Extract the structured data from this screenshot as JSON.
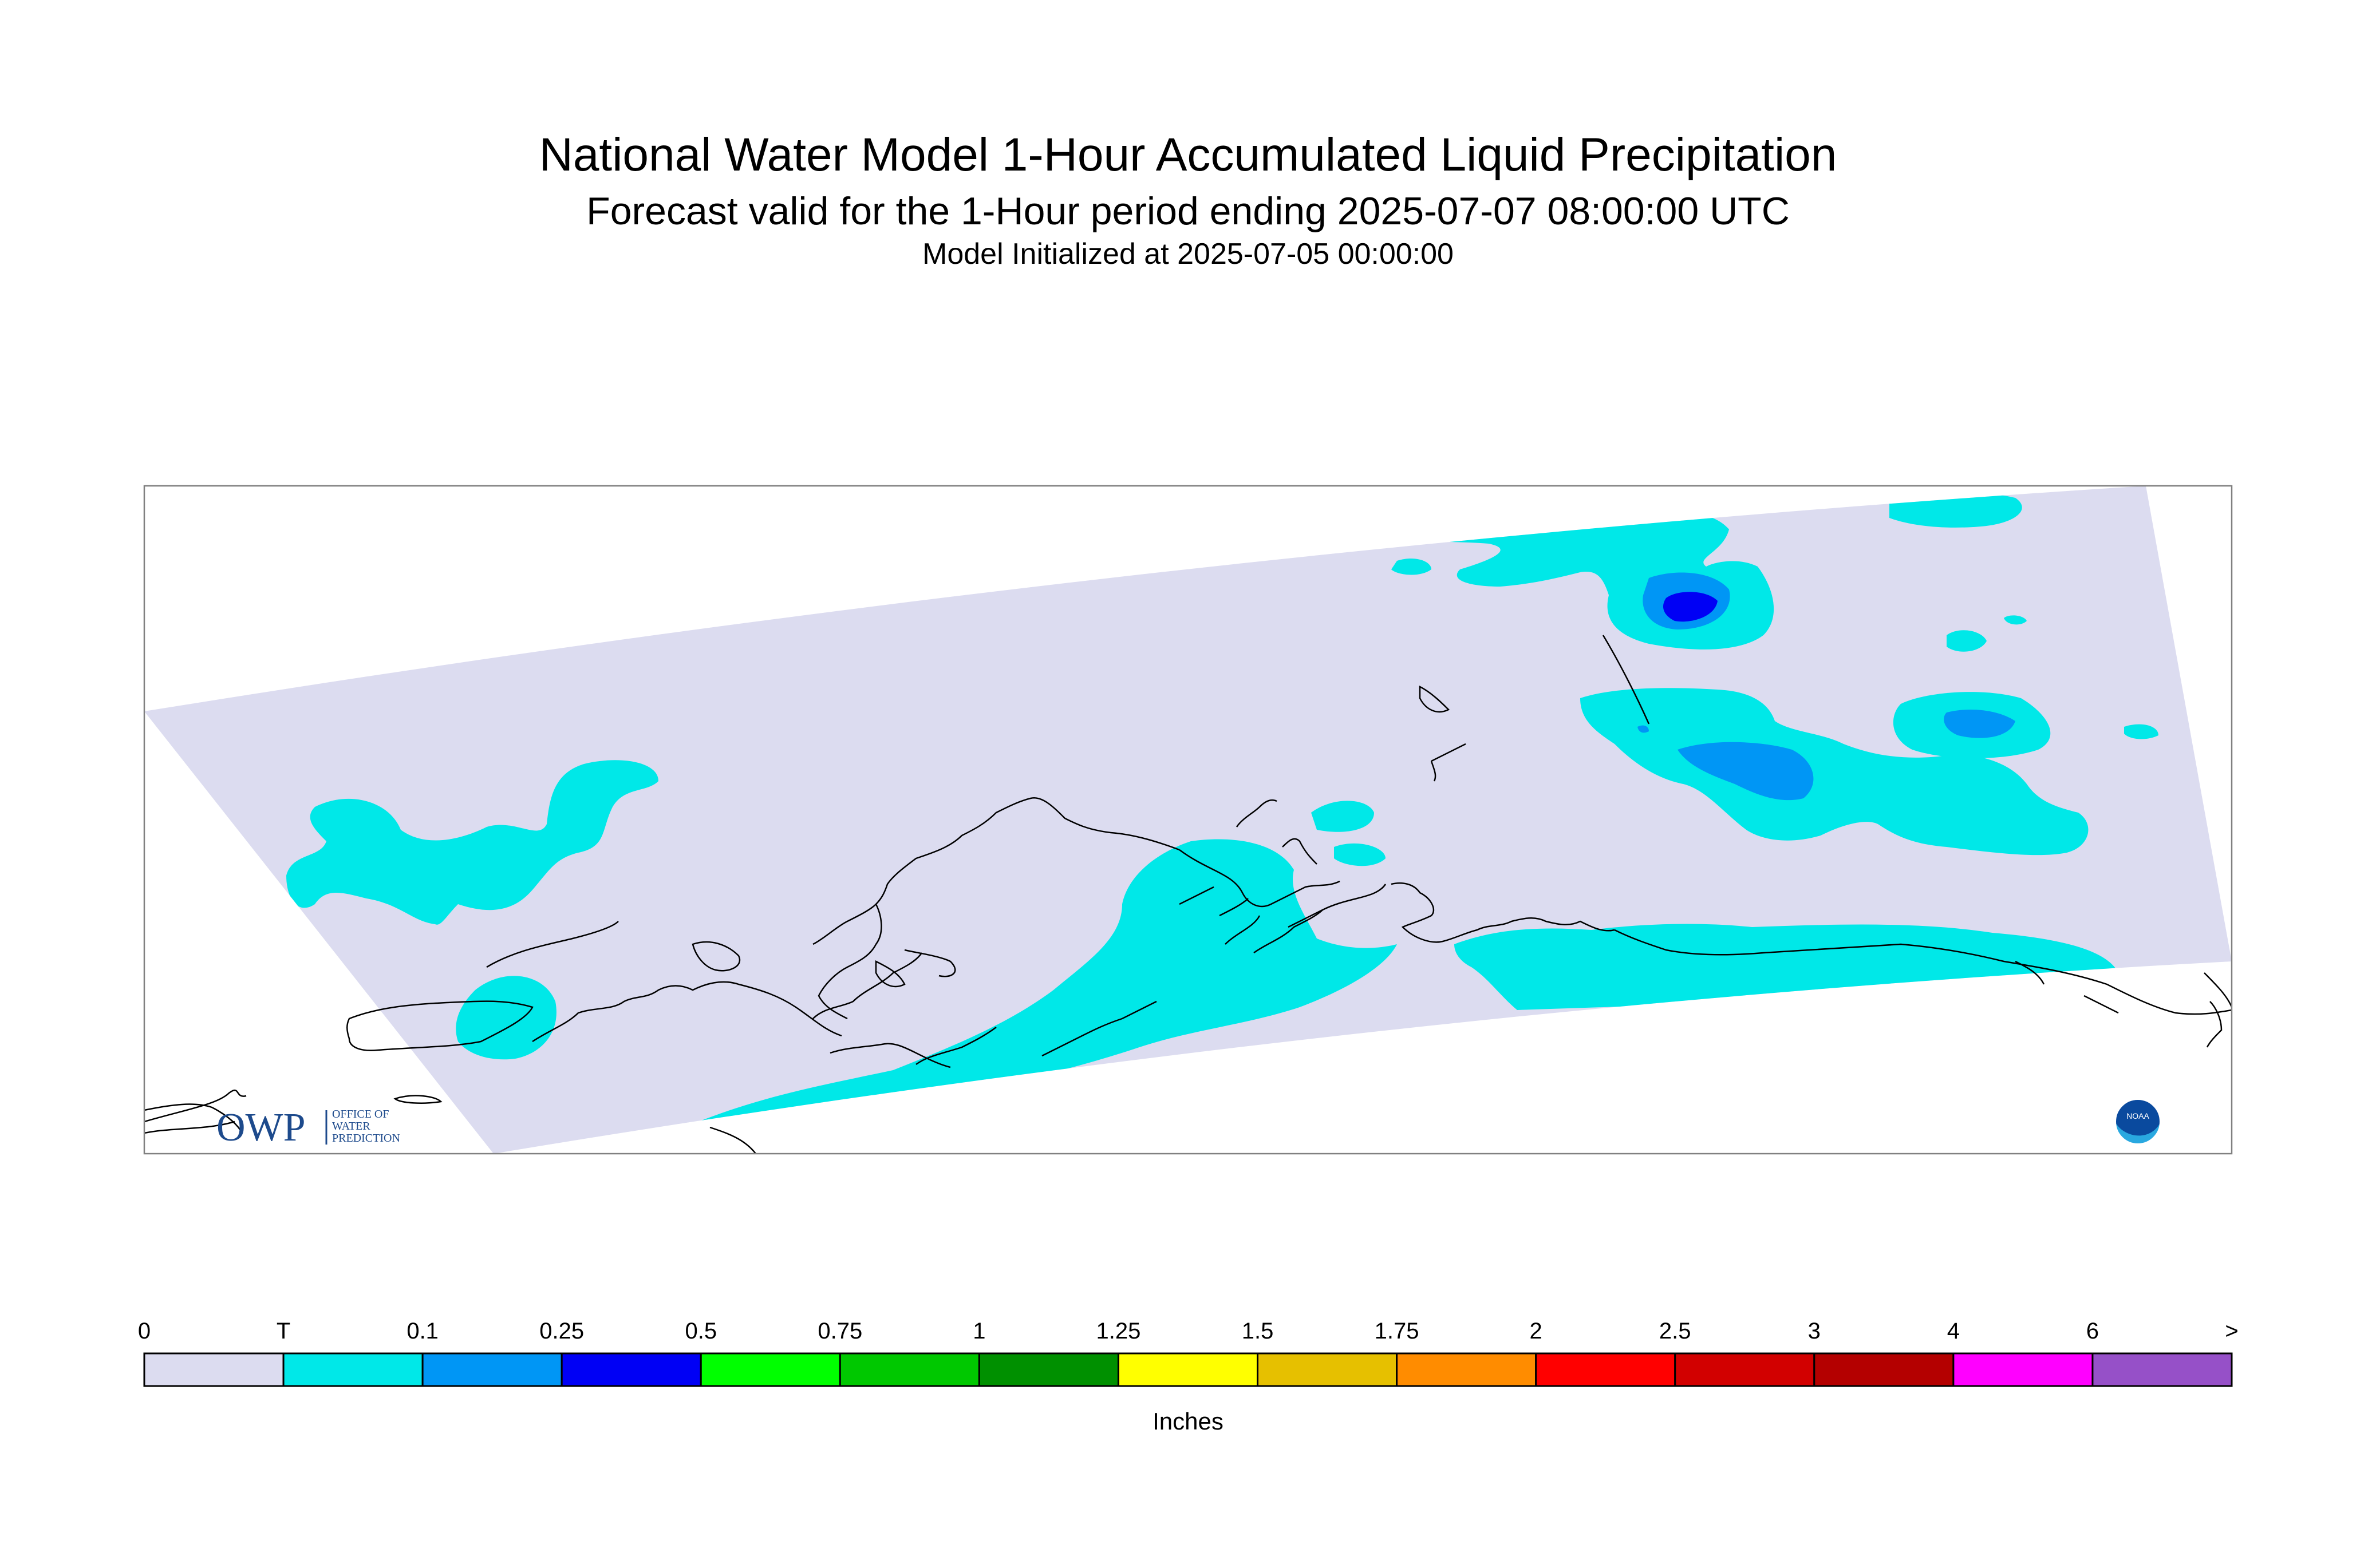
{
  "header": {
    "title": "National Water Model 1-Hour Accumulated Liquid Precipitation",
    "subtitle": "Forecast valid for the 1-Hour period ending 2025-07-07 08:00:00 UTC",
    "init_line": "Model Initialized at 2025-07-05 00:00:00"
  },
  "logos": {
    "owp_mark": "OWP",
    "owp_text_1": "OFFICE OF",
    "owp_text_2": "WATER",
    "owp_text_3": "PREDICTION",
    "noaa_mark": "NOAA"
  },
  "colorbar": {
    "labels": [
      "0",
      "T",
      "0.1",
      "0.25",
      "0.5",
      "0.75",
      "1",
      "1.25",
      "1.5",
      "1.75",
      "2",
      "2.5",
      "3",
      "4",
      "6",
      ">"
    ],
    "colors": [
      "#dcdcf0",
      "#00e8e8",
      "#0096f5",
      "#0000f5",
      "#00ff00",
      "#00c800",
      "#009000",
      "#ffff00",
      "#e6c000",
      "#ff8c00",
      "#ff0000",
      "#d20000",
      "#b40000",
      "#ff00ff",
      "#9650c8"
    ],
    "units": "Inches"
  },
  "map_colors": {
    "zero": "#dcdcf0",
    "trace": "#00e8e8",
    "light": "#0096f5",
    "moderate": "#0000f5",
    "coast": "#000000",
    "frame": "#808080",
    "owp_blue": "#1d4a8c"
  }
}
